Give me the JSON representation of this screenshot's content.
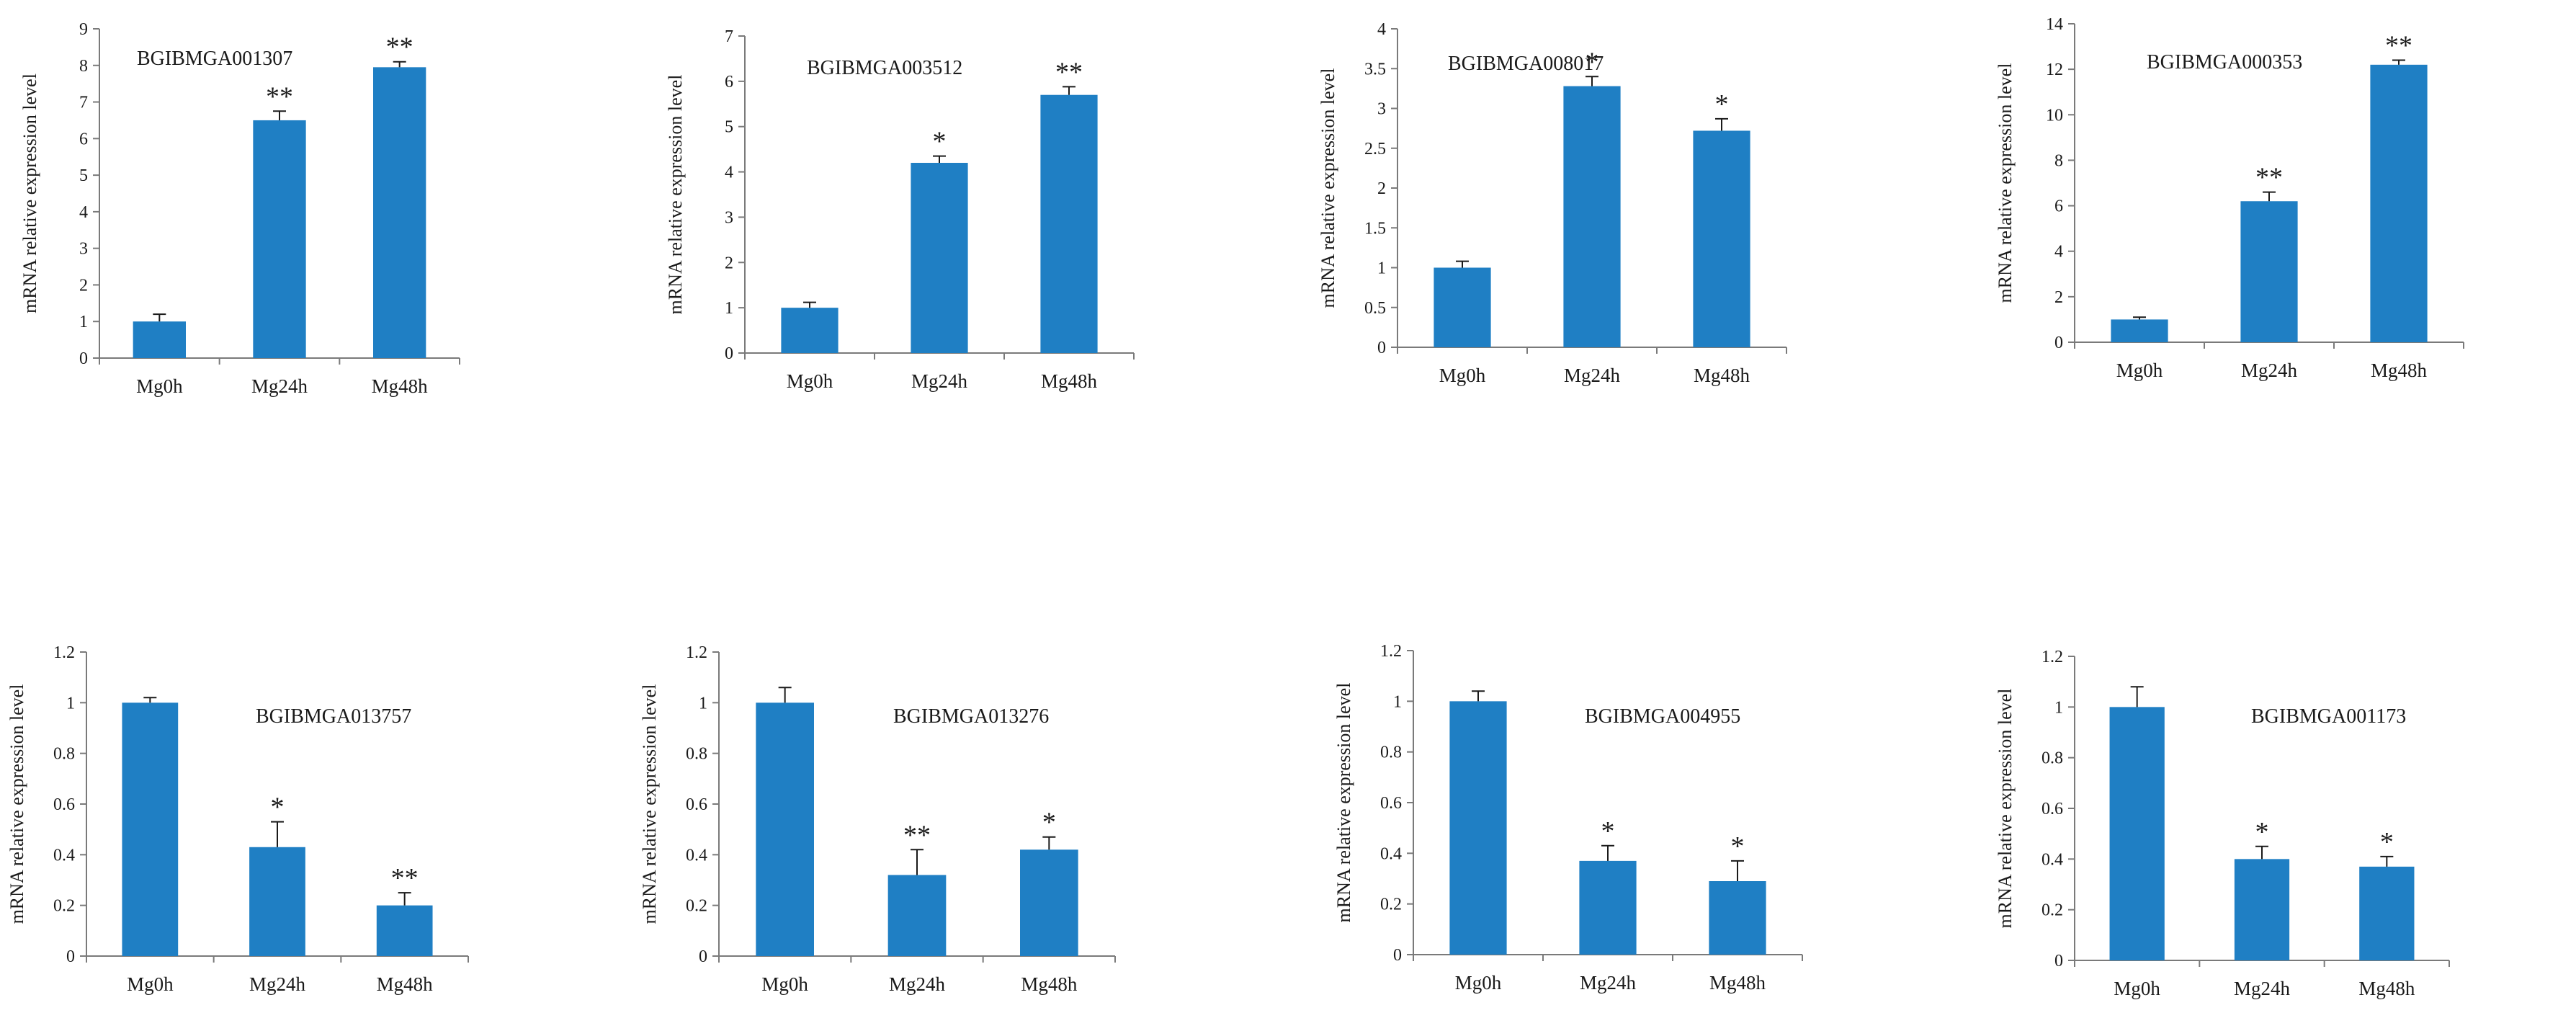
{
  "chart_data": [
    {
      "type": "bar",
      "title": "BGIBMGA001307",
      "ylabel": "mRNA relative expression level",
      "xlabel": "",
      "categories": [
        "Mg0h",
        "Mg24h",
        "Mg48h"
      ],
      "values": [
        1.0,
        6.5,
        7.95
      ],
      "errors": [
        0.2,
        0.25,
        0.15
      ],
      "annotations": [
        "",
        "**",
        "**"
      ],
      "ylim": [
        0,
        9
      ],
      "yticks": [
        "0",
        "1",
        "2",
        "3",
        "4",
        "5",
        "6",
        "7",
        "8",
        "9"
      ],
      "color": "#1f7fc4",
      "grid": false
    },
    {
      "type": "bar",
      "title": "BGIBMGA003512",
      "ylabel": "mRNA relative expression level",
      "xlabel": "",
      "categories": [
        "Mg0h",
        "Mg24h",
        "Mg48h"
      ],
      "values": [
        1.0,
        4.2,
        5.7
      ],
      "errors": [
        0.12,
        0.15,
        0.18
      ],
      "annotations": [
        "",
        "*",
        "**"
      ],
      "ylim": [
        0,
        7
      ],
      "yticks": [
        "0",
        "1",
        "2",
        "3",
        "4",
        "5",
        "6",
        "7"
      ],
      "color": "#1f7fc4",
      "grid": false
    },
    {
      "type": "bar",
      "title": "BGIBMGA008017",
      "ylabel": "mRNA relative expression level",
      "xlabel": "",
      "categories": [
        "Mg0h",
        "Mg24h",
        "Mg48h"
      ],
      "values": [
        1.0,
        3.28,
        2.72
      ],
      "errors": [
        0.08,
        0.12,
        0.15
      ],
      "annotations": [
        "",
        "*",
        "*"
      ],
      "ylim": [
        0,
        4
      ],
      "yticks": [
        "0",
        "0.5",
        "1",
        "1.5",
        "2",
        "2.5",
        "3",
        "3.5",
        "4"
      ],
      "color": "#1f7fc4",
      "grid": false
    },
    {
      "type": "bar",
      "title": "BGIBMGA000353",
      "ylabel": "mRNA relative expression level",
      "xlabel": "",
      "categories": [
        "Mg0h",
        "Mg24h",
        "Mg48h"
      ],
      "values": [
        1.0,
        6.2,
        12.2
      ],
      "errors": [
        0.1,
        0.4,
        0.2
      ],
      "annotations": [
        "",
        "**",
        "**"
      ],
      "ylim": [
        0,
        14
      ],
      "yticks": [
        "0",
        "2",
        "4",
        "6",
        "8",
        "10",
        "12",
        "14"
      ],
      "color": "#1f7fc4",
      "grid": false
    },
    {
      "type": "bar",
      "title": "BGIBMGA013757",
      "ylabel": "mRNA relative expression level",
      "xlabel": "",
      "categories": [
        "Mg0h",
        "Mg24h",
        "Mg48h"
      ],
      "values": [
        1.0,
        0.43,
        0.2
      ],
      "errors": [
        0.02,
        0.1,
        0.05
      ],
      "annotations": [
        "",
        "*",
        "**"
      ],
      "ylim": [
        0,
        1.2
      ],
      "yticks": [
        "0",
        "0.2",
        "0.4",
        "0.6",
        "0.8",
        "1",
        "1.2"
      ],
      "color": "#1f7fc4",
      "grid": false
    },
    {
      "type": "bar",
      "title": "BGIBMGA013276",
      "ylabel": "mRNA relative expression level",
      "xlabel": "",
      "categories": [
        "Mg0h",
        "Mg24h",
        "Mg48h"
      ],
      "values": [
        1.0,
        0.32,
        0.42
      ],
      "errors": [
        0.06,
        0.1,
        0.05
      ],
      "annotations": [
        "",
        "**",
        "*"
      ],
      "ylim": [
        0,
        1.2
      ],
      "yticks": [
        "0",
        "0.2",
        "0.4",
        "0.6",
        "0.8",
        "1",
        "1.2"
      ],
      "color": "#1f7fc4",
      "grid": false
    },
    {
      "type": "bar",
      "title": "BGIBMGA004955",
      "ylabel": "mRNA relative expression level",
      "xlabel": "",
      "categories": [
        "Mg0h",
        "Mg24h",
        "Mg48h"
      ],
      "values": [
        1.0,
        0.37,
        0.29
      ],
      "errors": [
        0.04,
        0.06,
        0.08
      ],
      "annotations": [
        "",
        "*",
        "*"
      ],
      "ylim": [
        0,
        1.2
      ],
      "yticks": [
        "0",
        "0.2",
        "0.4",
        "0.6",
        "0.8",
        "1",
        "1.2"
      ],
      "color": "#1f7fc4",
      "grid": false
    },
    {
      "type": "bar",
      "title": "BGIBMGA001173",
      "ylabel": "mRNA relative expression level",
      "xlabel": "",
      "categories": [
        "Mg0h",
        "Mg24h",
        "Mg48h"
      ],
      "values": [
        1.0,
        0.4,
        0.37
      ],
      "errors": [
        0.08,
        0.05,
        0.04
      ],
      "annotations": [
        "",
        "*",
        "*"
      ],
      "ylim": [
        0,
        1.2
      ],
      "yticks": [
        "0",
        "0.2",
        "0.4",
        "0.6",
        "0.8",
        "1",
        "1.2"
      ],
      "color": "#1f7fc4",
      "grid": false
    }
  ]
}
